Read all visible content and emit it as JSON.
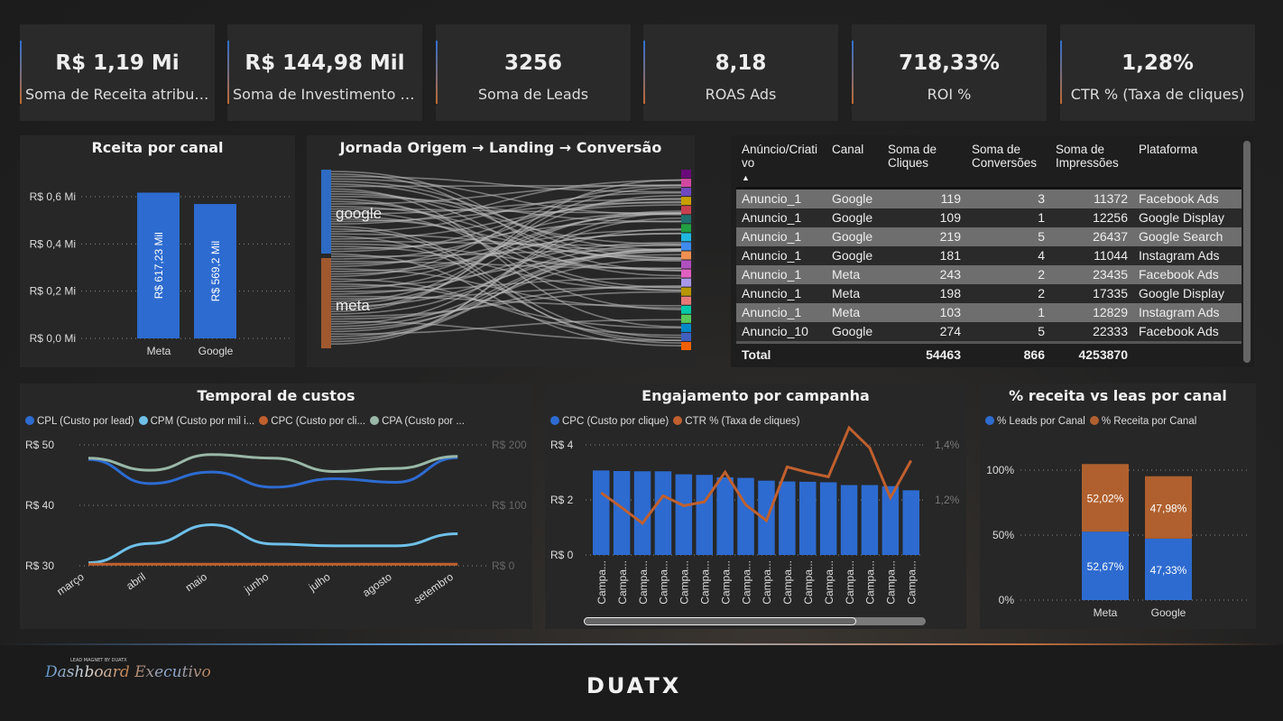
{
  "kpis": [
    {
      "value": "R$ 1,19 Mi",
      "label": "Soma de Receita atribuí..."
    },
    {
      "value": "R$ 144,98 Mil",
      "label": "Soma de Investimento (..."
    },
    {
      "value": "3256",
      "label": "Soma de Leads"
    },
    {
      "value": "8,18",
      "label": "ROAS Ads"
    },
    {
      "value": "718,33%",
      "label": "ROI %"
    },
    {
      "value": "1,28%",
      "label": "CTR % (Taxa de cliques)"
    }
  ],
  "sankey": {
    "title": "Jornada Origem → Landing → Conversão",
    "sources": [
      "google",
      "meta"
    ],
    "source_colors": [
      "#2d6bc4",
      "#a0582e"
    ],
    "target_colors": [
      "#6a0a7a",
      "#d048a0",
      "#7048c0",
      "#c8a000",
      "#c84050",
      "#207070",
      "#20a040",
      "#20b8e0",
      "#3f8cf0",
      "#f09050",
      "#b050c0",
      "#e060c0",
      "#a898e8",
      "#b89800",
      "#e87878",
      "#00c8a8",
      "#58c858",
      "#0088c8",
      "#4060c0",
      "#f06000"
    ]
  },
  "table": {
    "headers": [
      "Anúncio/Criativo",
      "Canal",
      "Soma de Cliques",
      "Soma de Conversões",
      "Soma de Impressões",
      "Plataforma"
    ],
    "rows": [
      [
        "Anuncio_1",
        "Google",
        "119",
        "3",
        "11372",
        "Facebook Ads"
      ],
      [
        "Anuncio_1",
        "Google",
        "109",
        "1",
        "12256",
        "Google Display"
      ],
      [
        "Anuncio_1",
        "Google",
        "219",
        "5",
        "26437",
        "Google Search"
      ],
      [
        "Anuncio_1",
        "Google",
        "181",
        "4",
        "11044",
        "Instagram Ads"
      ],
      [
        "Anuncio_1",
        "Meta",
        "243",
        "2",
        "23435",
        "Facebook Ads"
      ],
      [
        "Anuncio_1",
        "Meta",
        "198",
        "2",
        "17335",
        "Google Display"
      ],
      [
        "Anuncio_1",
        "Meta",
        "103",
        "1",
        "12829",
        "Instagram Ads"
      ],
      [
        "Anuncio_10",
        "Google",
        "274",
        "5",
        "22333",
        "Facebook Ads"
      ]
    ],
    "total": [
      "Total",
      "",
      "54463",
      "866",
      "4253870",
      ""
    ]
  },
  "footer": {
    "logo_small": "LEAD MAGNET BY DUATX",
    "logo_script": "Dashboard Executivo",
    "brand": "DUATX"
  },
  "chart_data": [
    {
      "type": "bar",
      "title": "Rceita por canal",
      "categories": [
        "Meta",
        "Google"
      ],
      "values": [
        0.61723,
        0.5692
      ],
      "data_labels": [
        "R$ 617,23 Mil",
        "R$ 569,2 Mil"
      ],
      "ylim": [
        0,
        0.6
      ],
      "yticks": [
        "R$ 0,0 Mi",
        "R$ 0,2 Mi",
        "R$ 0,4 Mi",
        "R$ 0,6 Mi"
      ],
      "color": "#2d6bd0",
      "grid": true
    },
    {
      "type": "line",
      "title": "Temporal de custos",
      "categories": [
        "março",
        "abril",
        "maio",
        "junho",
        "julho",
        "agosto",
        "setembro"
      ],
      "ylim": [
        30,
        50
      ],
      "yticks": [
        "R$ 30",
        "R$ 40",
        "R$ 50"
      ],
      "y2lim": [
        0,
        200
      ],
      "y2ticks": [
        "R$ 0",
        "R$ 100",
        "R$ 200"
      ],
      "grid": true,
      "legend": "top",
      "series": [
        {
          "name": "CPL (Custo por lead)",
          "legend": "CPL (Custo por lead)",
          "color": "#2d6bd0",
          "axis": "left",
          "values": [
            47.6,
            43.6,
            45.5,
            43.0,
            44.4,
            43.8,
            47.9
          ]
        },
        {
          "name": "CPM (Custo por mil impressões)",
          "legend": "CPM (Custo por mil i...",
          "color": "#6ec0e8",
          "axis": "left",
          "values": [
            30.5,
            33.7,
            36.8,
            33.6,
            33.3,
            33.3,
            35.3
          ]
        },
        {
          "name": "CPC (Custo por clique)",
          "legend": "CPC (Custo por cli...",
          "color": "#c0602e",
          "axis": "right",
          "values": [
            2.7,
            2.7,
            2.7,
            2.7,
            2.7,
            2.7,
            2.7
          ]
        },
        {
          "name": "CPA (Custo por aquisição)",
          "legend": "CPA (Custo por ...",
          "color": "#9ab8a8",
          "axis": "left",
          "values": [
            47.8,
            45.8,
            48.4,
            47.8,
            45.6,
            46.1,
            48.1
          ]
        }
      ]
    },
    {
      "type": "bar",
      "title": "Engajamento por campanha",
      "categories": [
        "Campa...",
        "Campa...",
        "Campa...",
        "Campa...",
        "Campa...",
        "Campa...",
        "Campa...",
        "Campa...",
        "Campa...",
        "Campa...",
        "Campa...",
        "Campa...",
        "Campa...",
        "Campa...",
        "Campa...",
        "Campa..."
      ],
      "ylim": [
        0,
        4
      ],
      "yticks": [
        "R$ 0",
        "R$ 2",
        "R$ 4"
      ],
      "y2ticks": [
        "1,2%",
        "1,4%"
      ],
      "y2lim": [
        1.2,
        1.4
      ],
      "legend": "top",
      "grid": true,
      "series": [
        {
          "name": "CPC (Custo por clique)",
          "type": "bar",
          "color": "#2d6bd0",
          "values": [
            3.07,
            3.05,
            3.04,
            3.04,
            2.93,
            2.91,
            2.82,
            2.8,
            2.7,
            2.67,
            2.66,
            2.64,
            2.54,
            2.54,
            2.5,
            2.35
          ]
        },
        {
          "name": "CTR % (Taxa de cliques)",
          "type": "line",
          "color": "#c0602e",
          "values": [
            1.226,
            1.172,
            1.115,
            1.215,
            1.179,
            1.193,
            1.301,
            1.182,
            1.125,
            1.32,
            1.3,
            1.284,
            1.462,
            1.389,
            1.208,
            1.343
          ]
        }
      ],
      "legend_colors": [
        "#c0602e",
        "#c0602e"
      ]
    },
    {
      "type": "bar",
      "stacked": true,
      "title": "% receita vs leas por canal",
      "categories": [
        "Meta",
        "Google"
      ],
      "ylim": [
        0,
        100
      ],
      "yticks": [
        "0%",
        "50%",
        "100%"
      ],
      "legend": "top",
      "grid": true,
      "series": [
        {
          "name": "% Leads por Canal",
          "color": "#2d6bd0",
          "values": [
            52.67,
            47.33
          ],
          "labels": [
            "52,67%",
            "47,33%"
          ]
        },
        {
          "name": "% Receita por Canal",
          "color": "#b0602e",
          "values": [
            52.02,
            47.98
          ],
          "labels": [
            "52,02%",
            "47,98%"
          ]
        }
      ]
    }
  ]
}
